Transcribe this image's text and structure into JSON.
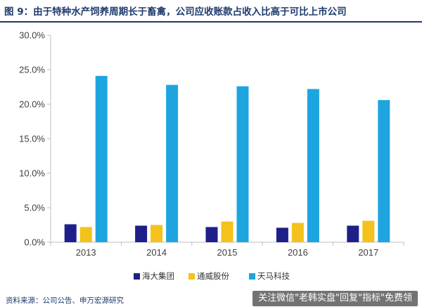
{
  "figure": {
    "title": "图 9：由于特种水产饲养周期长于畜禽，公司应收账款占收入比高于可比上市公司",
    "source": "资料来源：公司公告、申万宏源研究"
  },
  "watermark": {
    "text": "关注微信\"老韩实盘\"回复\"指标\"免费领"
  },
  "colors": {
    "title": "#1f3b6e",
    "axis": "#bfbfbf"
  },
  "chart_data": {
    "type": "bar",
    "categories": [
      "2013",
      "2014",
      "2015",
      "2016",
      "2017"
    ],
    "series": [
      {
        "name": "海大集团",
        "color": "#1f1f8a",
        "values": [
          2.6,
          2.4,
          2.2,
          2.1,
          2.4
        ]
      },
      {
        "name": "通威股份",
        "color": "#f5c21b",
        "values": [
          2.2,
          2.5,
          3.0,
          2.8,
          3.1
        ]
      },
      {
        "name": "天马科技",
        "color": "#1ea5e0",
        "values": [
          24.1,
          22.8,
          22.6,
          22.2,
          20.6
        ]
      }
    ],
    "ylim": [
      0,
      30
    ],
    "yticks": [
      "0.0%",
      "5.0%",
      "10.0%",
      "15.0%",
      "20.0%",
      "25.0%",
      "30.0%"
    ],
    "ytick_values": [
      0,
      5,
      10,
      15,
      20,
      25,
      30
    ],
    "grid": false,
    "legend_position": "bottom"
  }
}
